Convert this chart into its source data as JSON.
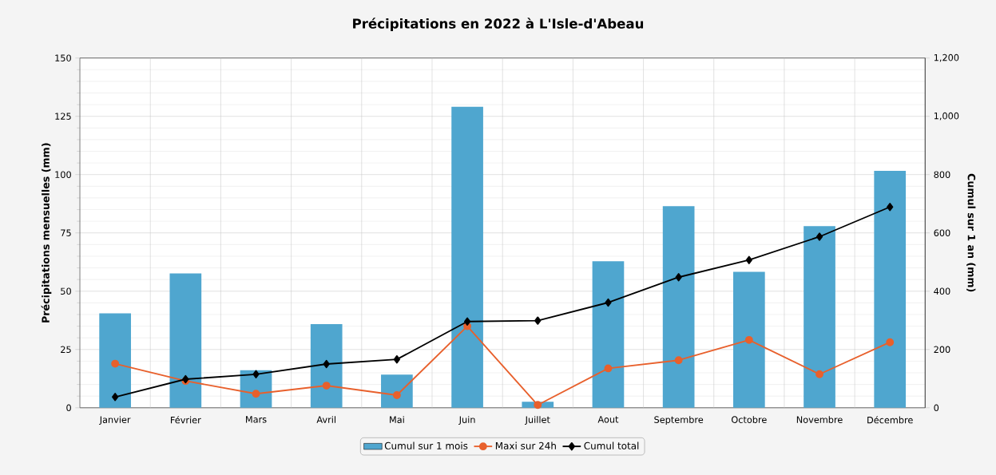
{
  "chart_data": {
    "type": "bar",
    "title": "Précipitations en 2022 à L'Isle-d'Abeau",
    "ylabel": "Précipitations mensuelles (mm)",
    "y2label": "Cumul sur 1 an (mm)",
    "categories": [
      "Janvier",
      "Février",
      "Mars",
      "Avril",
      "Mai",
      "Juin",
      "Juillet",
      "Aout",
      "Septembre",
      "Octobre",
      "Novembre",
      "Décembre"
    ],
    "series": [
      {
        "name": "Cumul sur 1 mois",
        "color": "#4fa6cf",
        "values": [
          40.5,
          57.6,
          16.1,
          35.9,
          14.2,
          129.1,
          2.6,
          62.8,
          86.5,
          58.3,
          77.9,
          101.6
        ]
      },
      {
        "name": "Maxi sur 24h",
        "type": "line",
        "color": "#e8602c",
        "marker": "circle",
        "values": [
          18.9,
          11.5,
          6.0,
          9.5,
          5.4,
          35.0,
          1.2,
          16.9,
          20.4,
          29.1,
          14.4,
          28.1
        ]
      },
      {
        "name": "Cumul total",
        "type": "line",
        "color": "#000000",
        "marker": "diamond",
        "axis": "y2",
        "values": [
          37,
          98,
          115,
          150,
          166,
          296,
          299,
          361,
          448,
          507,
          587,
          689
        ]
      }
    ],
    "ylim": [
      0,
      150
    ],
    "yticks": [
      0,
      25,
      50,
      75,
      100,
      125,
      150
    ],
    "y2lim": [
      0,
      1200
    ],
    "y2ticks": [
      0,
      200,
      400,
      600,
      800,
      {
        "value": 1000,
        "label": "1,000"
      },
      {
        "value": 1200,
        "label": "1,200"
      }
    ],
    "grid": true,
    "legend": "bottom"
  }
}
